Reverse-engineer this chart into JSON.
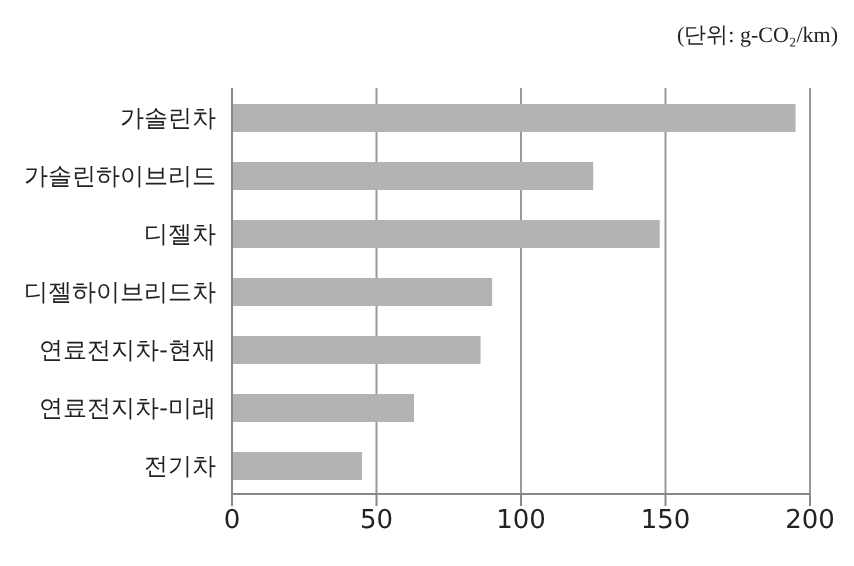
{
  "chart_data": {
    "type": "bar",
    "orientation": "horizontal",
    "annotations": [
      "(단위: g-CO₂/km)"
    ],
    "categories": [
      "가솔린차",
      "가솔린하이브리드",
      "디젤차",
      "디젤하이브리드차",
      "연료전지차-현재",
      "연료전지차-미래",
      "전기차"
    ],
    "values": [
      195,
      125,
      148,
      90,
      86,
      63,
      45
    ],
    "color": "#b3b3b3",
    "xlim": [
      0,
      200
    ],
    "xticks": [
      0,
      50,
      100,
      150,
      200
    ],
    "grid": "x"
  }
}
